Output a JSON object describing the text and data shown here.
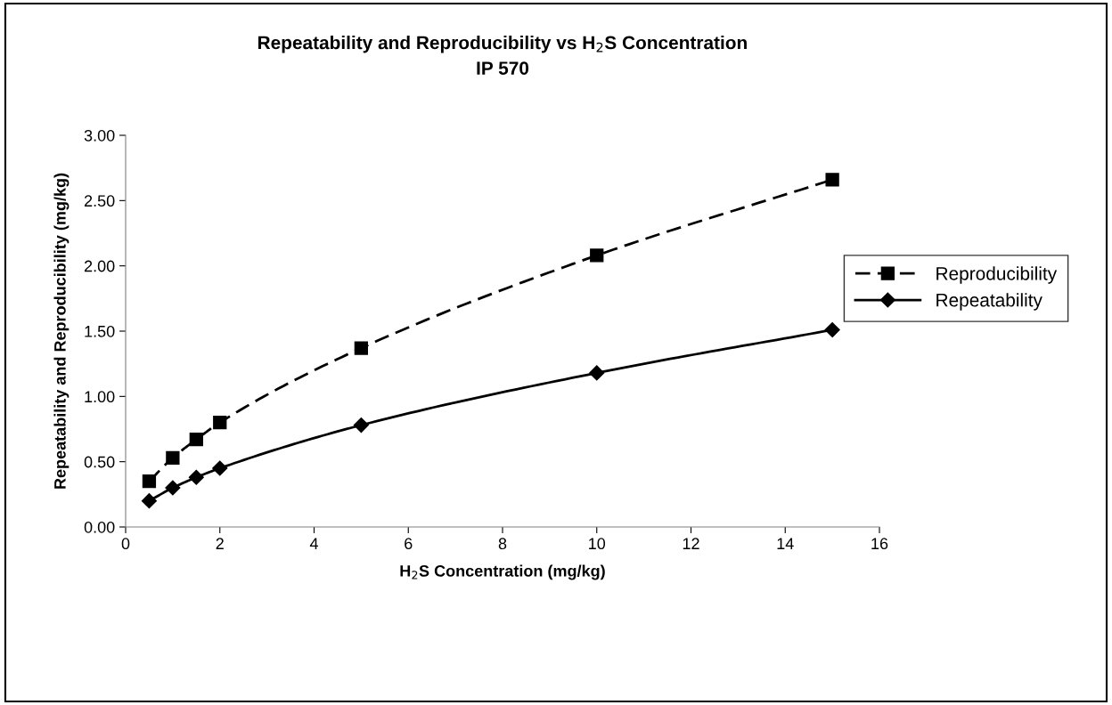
{
  "chart_data": {
    "type": "line",
    "title": "Repeatability and Reproducibility vs H$_{2}$S Concentration\nIP 570",
    "xlabel": "H$_{2}$S Concentration (mg/kg)",
    "ylabel": "Repeatability and Reproducibility (mg/kg)",
    "x": [
      0.5,
      1,
      1.5,
      2,
      5,
      10,
      15
    ],
    "series": [
      {
        "name": "Reproducibility",
        "color": "#000000",
        "marker": "square",
        "line_style": "dashed",
        "values": [
          0.35,
          0.53,
          0.67,
          0.8,
          1.37,
          2.08,
          2.66
        ]
      },
      {
        "name": "Repeatability",
        "color": "#000000",
        "marker": "diamond",
        "line_style": "solid",
        "values": [
          0.2,
          0.3,
          0.38,
          0.45,
          0.78,
          1.18,
          1.51
        ]
      }
    ],
    "xlim": [
      0,
      16
    ],
    "xticks": [
      0,
      2,
      4,
      6,
      8,
      10,
      12,
      14,
      16
    ],
    "ylim": [
      0,
      3
    ],
    "yticks": [
      {
        "value": 0,
        "label": "0.00"
      },
      {
        "value": 0.5,
        "label": "0.50"
      },
      {
        "value": 1,
        "label": "1.00"
      },
      {
        "value": 1.5,
        "label": "1.50"
      },
      {
        "value": 2,
        "label": "2.00"
      },
      {
        "value": 2.5,
        "label": "2.50"
      },
      {
        "value": 3,
        "label": "3.00"
      }
    ],
    "grid": false,
    "legend": "right"
  }
}
